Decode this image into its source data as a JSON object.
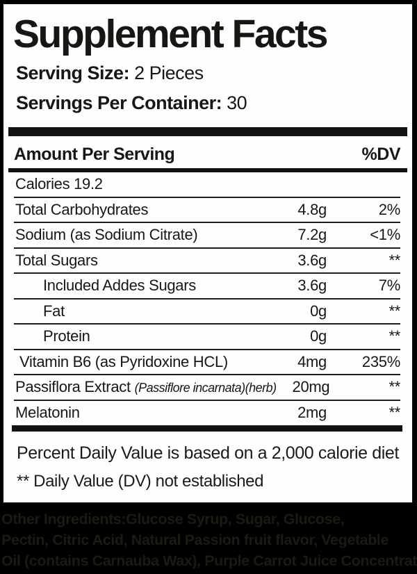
{
  "label": {
    "title": "Supplement Facts",
    "serving_size_label": "Serving Size:",
    "serving_size_value": "2 Pieces",
    "servings_per_container_label": "Servings Per Container:",
    "servings_per_container_value": "30",
    "header": {
      "amount_per_serving": "Amount Per Serving",
      "dv": "%DV"
    },
    "rows": [
      {
        "name": "Calories 19.2",
        "amount": "",
        "dv": ""
      },
      {
        "name": "Total Carbohydrates",
        "amount": "4.8g",
        "dv": "2%"
      },
      {
        "name": "Sodium (as Sodium Citrate)",
        "amount": "7.2g",
        "dv": "<1%"
      },
      {
        "name": "Total Sugars",
        "amount": "3.6g",
        "dv": "**"
      },
      {
        "name": "Included Addes Sugars",
        "amount": "3.6g",
        "dv": "7%"
      },
      {
        "name": "Fat",
        "amount": "0g",
        "dv": "**"
      },
      {
        "name": "Protein",
        "amount": "0g",
        "dv": "**"
      },
      {
        "name": "Vitamin B6 (as Pyridoxine HCL)",
        "amount": "4mg",
        "dv": "235%"
      },
      {
        "name": "Passiflora Extract ",
        "name_sci": "(Passiflore incarnata)(herb)",
        "amount": "20mg",
        "dv": "**"
      },
      {
        "name": "Melatonin",
        "amount": "2mg",
        "dv": "**"
      }
    ],
    "footnotes": [
      "Percent Daily Value is based on a 2,000 calorie diet",
      "** Daily Value (DV) not established"
    ]
  },
  "other_ingredients": {
    "lines": [
      "Other Ingredients:Glucose Syrup,  Sugar, Glucose,",
      "Pectin, Citric Acid, Natural Passion fruit flavor, Vegetable",
      "Oil (contains Carnauba Wax), Purple Carrot Juice Concentrate"
    ]
  },
  "colors": {
    "background": "#000000",
    "box_background": "#fefefe",
    "label_text": "#171713",
    "ingredients_text": "#1b1b11"
  }
}
